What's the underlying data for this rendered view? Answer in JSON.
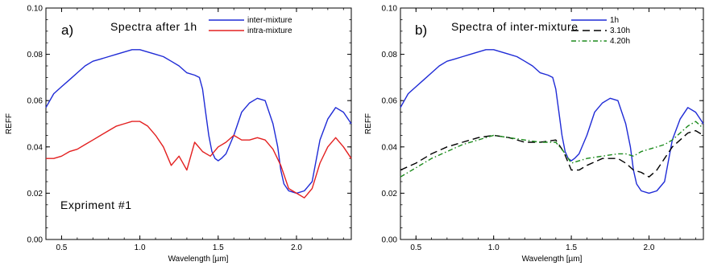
{
  "chart_data": [
    {
      "type": "line",
      "panel_tag": "a)",
      "title": "Spectra after 1h",
      "xlabel": "Wavelength [µm]",
      "ylabel": "REFF",
      "xlim": [
        0.4,
        2.35
      ],
      "ylim": [
        0.0,
        0.1
      ],
      "xticks": [
        0.5,
        1.0,
        1.5,
        2.0
      ],
      "xtick_labels": [
        "0.5",
        "1.0",
        "1.5",
        "2.0"
      ],
      "yticks": [
        0.0,
        0.02,
        0.04,
        0.06,
        0.08,
        0.1
      ],
      "ytick_labels": [
        "0.00",
        "0.02",
        "0.04",
        "0.06",
        "0.08",
        "0.10"
      ],
      "grid": false,
      "legend_position": "top-right",
      "annotation": "Expriment #1",
      "series": [
        {
          "name": "inter-mixture",
          "color": "#1f2bd6",
          "dash": "solid",
          "x": [
            0.4,
            0.45,
            0.5,
            0.55,
            0.6,
            0.65,
            0.7,
            0.75,
            0.8,
            0.85,
            0.9,
            0.95,
            1.0,
            1.05,
            1.1,
            1.15,
            1.2,
            1.25,
            1.3,
            1.35,
            1.38,
            1.4,
            1.42,
            1.44,
            1.46,
            1.48,
            1.5,
            1.52,
            1.55,
            1.6,
            1.65,
            1.7,
            1.75,
            1.8,
            1.85,
            1.88,
            1.9,
            1.92,
            1.95,
            2.0,
            2.05,
            2.1,
            2.15,
            2.2,
            2.25,
            2.3,
            2.35
          ],
          "y": [
            0.057,
            0.063,
            0.066,
            0.069,
            0.072,
            0.075,
            0.077,
            0.078,
            0.079,
            0.08,
            0.081,
            0.082,
            0.082,
            0.081,
            0.08,
            0.079,
            0.077,
            0.075,
            0.072,
            0.071,
            0.07,
            0.065,
            0.055,
            0.045,
            0.038,
            0.035,
            0.034,
            0.035,
            0.037,
            0.045,
            0.055,
            0.059,
            0.061,
            0.06,
            0.05,
            0.04,
            0.03,
            0.024,
            0.021,
            0.02,
            0.021,
            0.025,
            0.043,
            0.052,
            0.057,
            0.055,
            0.05
          ]
        },
        {
          "name": "intra-mixture",
          "color": "#e32020",
          "dash": "solid",
          "x": [
            0.4,
            0.45,
            0.5,
            0.55,
            0.6,
            0.65,
            0.7,
            0.75,
            0.8,
            0.85,
            0.9,
            0.95,
            1.0,
            1.05,
            1.1,
            1.15,
            1.2,
            1.25,
            1.3,
            1.35,
            1.4,
            1.45,
            1.5,
            1.55,
            1.6,
            1.65,
            1.7,
            1.75,
            1.8,
            1.85,
            1.9,
            1.95,
            2.0,
            2.05,
            2.1,
            2.15,
            2.2,
            2.25,
            2.3,
            2.35
          ],
          "y": [
            0.035,
            0.035,
            0.036,
            0.038,
            0.039,
            0.041,
            0.043,
            0.045,
            0.047,
            0.049,
            0.05,
            0.051,
            0.051,
            0.049,
            0.045,
            0.04,
            0.032,
            0.036,
            0.03,
            0.042,
            0.038,
            0.036,
            0.04,
            0.042,
            0.045,
            0.043,
            0.043,
            0.044,
            0.043,
            0.039,
            0.032,
            0.022,
            0.02,
            0.018,
            0.022,
            0.033,
            0.04,
            0.044,
            0.04,
            0.035
          ]
        }
      ]
    },
    {
      "type": "line",
      "panel_tag": "b)",
      "title": "Spectra of inter-mixture",
      "xlabel": "Wavelength [µm]",
      "ylabel": "REFF",
      "xlim": [
        0.4,
        2.35
      ],
      "ylim": [
        0.0,
        0.1
      ],
      "xticks": [
        0.5,
        1.0,
        1.5,
        2.0
      ],
      "xtick_labels": [
        "0.5",
        "1.0",
        "1.5",
        "2.0"
      ],
      "yticks": [
        0.0,
        0.02,
        0.04,
        0.06,
        0.08,
        0.1
      ],
      "ytick_labels": [
        "0.00",
        "0.02",
        "0.04",
        "0.06",
        "0.08",
        "0.10"
      ],
      "grid": false,
      "legend_position": "top-right",
      "series": [
        {
          "name": "1h",
          "color": "#1f2bd6",
          "dash": "solid",
          "x": [
            0.4,
            0.45,
            0.5,
            0.55,
            0.6,
            0.65,
            0.7,
            0.75,
            0.8,
            0.85,
            0.9,
            0.95,
            1.0,
            1.05,
            1.1,
            1.15,
            1.2,
            1.25,
            1.3,
            1.35,
            1.38,
            1.4,
            1.42,
            1.44,
            1.46,
            1.48,
            1.5,
            1.52,
            1.55,
            1.6,
            1.65,
            1.7,
            1.75,
            1.8,
            1.85,
            1.88,
            1.9,
            1.92,
            1.95,
            2.0,
            2.05,
            2.1,
            2.15,
            2.2,
            2.25,
            2.3,
            2.35
          ],
          "y": [
            0.057,
            0.063,
            0.066,
            0.069,
            0.072,
            0.075,
            0.077,
            0.078,
            0.079,
            0.08,
            0.081,
            0.082,
            0.082,
            0.081,
            0.08,
            0.079,
            0.077,
            0.075,
            0.072,
            0.071,
            0.07,
            0.065,
            0.055,
            0.045,
            0.038,
            0.035,
            0.034,
            0.035,
            0.037,
            0.045,
            0.055,
            0.059,
            0.061,
            0.06,
            0.05,
            0.04,
            0.03,
            0.024,
            0.021,
            0.02,
            0.021,
            0.025,
            0.043,
            0.052,
            0.057,
            0.055,
            0.05
          ]
        },
        {
          "name": "3.10h",
          "color": "#000000",
          "dash": "dashed",
          "x": [
            0.4,
            0.5,
            0.6,
            0.7,
            0.8,
            0.9,
            1.0,
            1.1,
            1.2,
            1.3,
            1.4,
            1.45,
            1.5,
            1.55,
            1.6,
            1.7,
            1.8,
            1.85,
            1.9,
            1.95,
            2.0,
            2.05,
            2.1,
            2.15,
            2.2,
            2.25,
            2.3,
            2.35
          ],
          "y": [
            0.03,
            0.033,
            0.037,
            0.04,
            0.042,
            0.044,
            0.045,
            0.044,
            0.042,
            0.042,
            0.043,
            0.038,
            0.03,
            0.03,
            0.032,
            0.035,
            0.035,
            0.033,
            0.03,
            0.029,
            0.027,
            0.03,
            0.035,
            0.04,
            0.043,
            0.046,
            0.047,
            0.045
          ]
        },
        {
          "name": "4.20h",
          "color": "#1b8a1b",
          "dash": "dashdot",
          "x": [
            0.4,
            0.5,
            0.6,
            0.7,
            0.8,
            0.9,
            1.0,
            1.1,
            1.2,
            1.3,
            1.4,
            1.45,
            1.5,
            1.55,
            1.6,
            1.7,
            1.8,
            1.85,
            1.9,
            1.95,
            2.0,
            2.05,
            2.1,
            2.15,
            2.2,
            2.25,
            2.3,
            2.35
          ],
          "y": [
            0.027,
            0.031,
            0.035,
            0.038,
            0.041,
            0.043,
            0.045,
            0.044,
            0.043,
            0.042,
            0.042,
            0.038,
            0.033,
            0.034,
            0.035,
            0.036,
            0.037,
            0.037,
            0.036,
            0.038,
            0.039,
            0.04,
            0.041,
            0.043,
            0.046,
            0.049,
            0.051,
            0.048
          ]
        }
      ]
    }
  ]
}
